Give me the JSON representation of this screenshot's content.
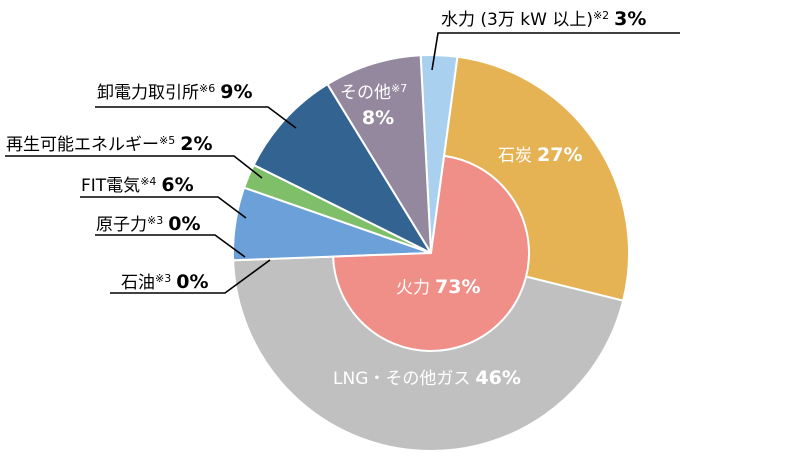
{
  "chart_data": {
    "type": "pie",
    "title": "",
    "outer": [
      {
        "name": "水力 (3万 kW 以上)",
        "note": "※2",
        "value": 3,
        "label": "3%",
        "color": "#a9d1ef"
      },
      {
        "name": "石炭",
        "note": "",
        "value": 27,
        "label": "27%",
        "color": "#e5b254"
      },
      {
        "name": "LNG・その他ガス",
        "note": "",
        "value": 46,
        "label": "46%",
        "color": "#c0c0c0"
      },
      {
        "name": "石油",
        "note": "※3",
        "value": 0,
        "label": "0%",
        "color": "#a0a0a0"
      },
      {
        "name": "原子力",
        "note": "※3",
        "value": 0,
        "label": "0%",
        "color": "#6ca0d8"
      },
      {
        "name": "FIT電気",
        "note": "※4",
        "value": 6,
        "label": "6%",
        "color": "#6ca0d8"
      },
      {
        "name": "再生可能エネルギー",
        "note": "※5",
        "value": 2,
        "label": "2%",
        "color": "#7fbf6a"
      },
      {
        "name": "卸電力取引所",
        "note": "※6",
        "value": 9,
        "label": "9%",
        "color": "#336491"
      },
      {
        "name": "その他",
        "note": "※7",
        "value": 8,
        "label": "8%",
        "color": "#93889e"
      }
    ],
    "inner": {
      "name": "火力",
      "value": 73,
      "label": "73%",
      "color": "#f08e88",
      "includes": [
        "石炭",
        "LNG・その他ガス",
        "石油"
      ]
    }
  }
}
